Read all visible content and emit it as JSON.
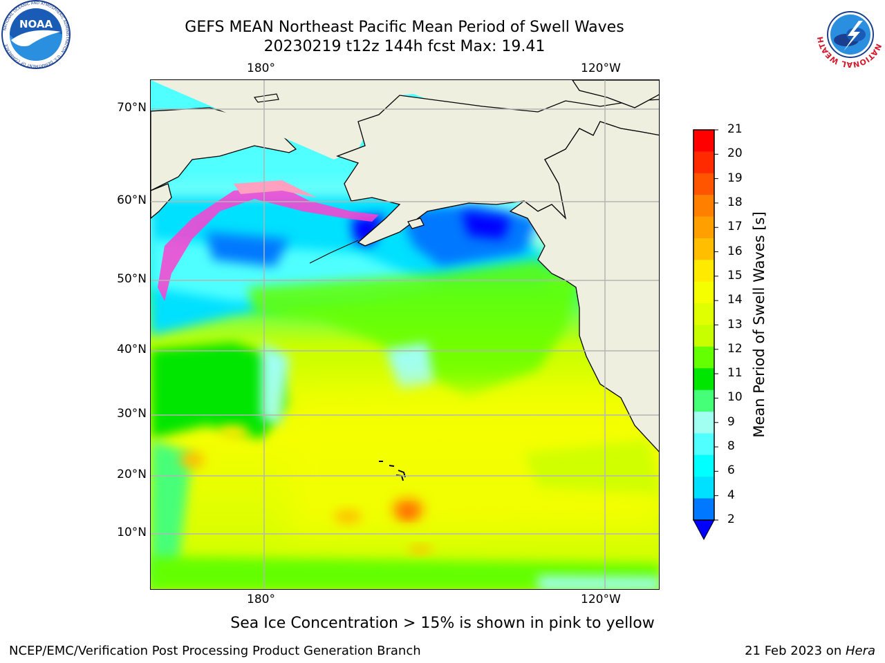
{
  "header": {
    "title_line1": "GEFS MEAN Northeast Pacific Mean Period of Swell Waves",
    "title_line2": "20230219 t12z 144h fcst   Max: 19.41"
  },
  "map": {
    "lon_labels_top": [
      "180°",
      "120°W"
    ],
    "lon_labels_bottom": [
      "180°",
      "120°W"
    ],
    "lat_labels": [
      "70°N",
      "60°N",
      "50°N",
      "40°N",
      "30°N",
      "20°N",
      "10°N"
    ],
    "land_color": "#efefdf",
    "grid_color": "#b4b4b4"
  },
  "colorbar": {
    "title": "Mean Period of Swell Waves [s]",
    "ticks": [
      "21",
      "20",
      "19",
      "18",
      "17",
      "16",
      "15",
      "14",
      "13",
      "12",
      "11",
      "10",
      "9",
      "8",
      "6",
      "4",
      "2"
    ],
    "colors_top_to_bottom": [
      "#ff0000",
      "#ff2a00",
      "#ff5500",
      "#ff7f00",
      "#ff9f00",
      "#ffbf00",
      "#ffea00",
      "#f5ff00",
      "#e0ff00",
      "#c8ff00",
      "#64ff00",
      "#00e600",
      "#46ff78",
      "#a0fff0",
      "#50ffff",
      "#00ffff",
      "#00e0ff",
      "#0078ff"
    ],
    "under_color": "#0000ff"
  },
  "footer": {
    "note": "Sea Ice Concentration > 15% is shown in pink to yellow",
    "credit": "NCEP/EMC/Verification Post Processing Product Generation Branch",
    "date": "21 Feb 2023 on ",
    "host": "Hera"
  },
  "logos": {
    "noaa_text": "NOAA",
    "noaa_ring_text": "NATIONAL OCEANIC AND ATMOSPHERIC ADMINISTRATION · U.S. DEPARTMENT OF COMMERCE",
    "nws_ring_text": "NATIONAL WEATHER SERVICE"
  }
}
